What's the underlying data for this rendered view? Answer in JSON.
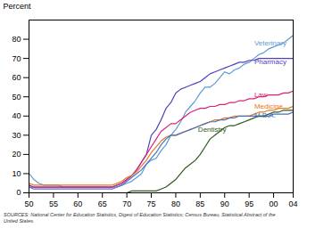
{
  "chart_data": {
    "type": "line",
    "y_label": "Percent",
    "source": "SOURCES: National Center for Education Statistics, Digest of Education Statistics; Census Bureau, Statistical Abstract of the\nUnited States.",
    "xlim": [
      50,
      104
    ],
    "ylim": [
      0,
      90
    ],
    "xticks": [
      50,
      55,
      60,
      65,
      70,
      75,
      80,
      85,
      90,
      95,
      {
        "value": 100,
        "label": "00"
      },
      {
        "value": 104,
        "label": "04"
      }
    ],
    "yticks": [
      0,
      10,
      20,
      30,
      40,
      50,
      60,
      70,
      80
    ],
    "grid": false,
    "x": [
      50,
      51,
      52,
      53,
      54,
      55,
      56,
      57,
      58,
      59,
      60,
      61,
      62,
      63,
      64,
      65,
      66,
      67,
      68,
      69,
      70,
      71,
      72,
      73,
      74,
      75,
      76,
      77,
      78,
      79,
      80,
      81,
      82,
      83,
      84,
      85,
      86,
      87,
      88,
      89,
      90,
      91,
      92,
      93,
      94,
      95,
      96,
      97,
      98,
      99,
      100,
      101,
      102,
      103,
      104
    ],
    "series": [
      {
        "name": "Veterinary",
        "color": "#5b9bd5",
        "values": [
          10,
          7,
          5,
          4,
          4,
          4,
          4,
          3,
          3,
          3,
          3,
          3,
          3,
          3,
          3,
          3,
          3,
          3,
          3,
          4,
          5,
          6,
          8,
          10,
          15,
          17,
          18,
          22,
          25,
          30,
          33,
          37,
          42,
          45,
          48,
          52,
          55,
          55,
          57,
          60,
          63,
          62,
          64,
          65,
          67,
          68,
          70,
          72,
          73,
          75,
          76,
          77,
          78,
          80,
          82
        ]
      },
      {
        "name": "Pharmacy",
        "color": "#5040c0",
        "values": [
          4,
          3,
          3,
          3,
          3,
          3,
          3,
          3,
          3,
          3,
          3,
          3,
          3,
          3,
          3,
          3,
          3,
          3,
          4,
          5,
          7,
          9,
          12,
          16,
          20,
          30,
          33,
          38,
          44,
          47,
          52,
          54,
          55,
          56,
          57,
          58,
          60,
          62,
          63,
          64,
          65,
          66,
          67,
          68,
          68,
          69,
          69,
          70,
          70,
          70,
          70,
          70,
          70,
          70,
          70
        ]
      },
      {
        "name": "Law",
        "color": "#e0207a",
        "values": [
          3,
          3,
          3,
          3,
          3,
          3,
          3,
          3,
          3,
          3,
          3,
          3,
          3,
          3,
          3,
          3,
          3,
          3,
          4,
          5,
          7,
          9,
          12,
          16,
          20,
          24,
          28,
          32,
          34,
          36,
          36,
          38,
          40,
          42,
          43,
          44,
          44,
          45,
          45,
          46,
          46,
          47,
          47,
          48,
          48,
          49,
          49,
          50,
          50,
          51,
          51,
          51,
          52,
          52,
          53
        ]
      },
      {
        "name": "Medicine",
        "color": "#e87820",
        "values": [
          5,
          4,
          4,
          4,
          4,
          4,
          4,
          4,
          4,
          4,
          4,
          4,
          4,
          4,
          4,
          4,
          4,
          4,
          5,
          6,
          8,
          9,
          11,
          14,
          17,
          21,
          24,
          27,
          29,
          30,
          30,
          31,
          32,
          33,
          34,
          35,
          36,
          37,
          38,
          38,
          39,
          39,
          40,
          40,
          40,
          40,
          41,
          42,
          42,
          43,
          43,
          44,
          44,
          44,
          45
        ]
      },
      {
        "name": "M.B.A.",
        "color": "#4472c4",
        "values": [
          3,
          2,
          2,
          2,
          2,
          2,
          2,
          2,
          2,
          2,
          2,
          2,
          2,
          2,
          2,
          2,
          2,
          2,
          3,
          4,
          6,
          8,
          10,
          12,
          15,
          18,
          21,
          25,
          28,
          30,
          30,
          31,
          32,
          33,
          34,
          35,
          36,
          37,
          37,
          38,
          38,
          39,
          39,
          40,
          40,
          40,
          40,
          40,
          40,
          40,
          41,
          41,
          41,
          41,
          42
        ]
      },
      {
        "name": "Dentistry",
        "color": "#2e5a1c",
        "values": [
          0,
          0,
          0,
          0,
          0,
          0,
          0,
          0,
          0,
          0,
          0,
          0,
          0,
          0,
          0,
          0,
          0,
          0,
          0,
          0,
          0,
          1,
          1,
          1,
          1,
          1,
          1,
          2,
          3,
          5,
          7,
          10,
          13,
          15,
          17,
          20,
          24,
          28,
          30,
          32,
          34,
          35,
          35,
          36,
          37,
          38,
          39,
          40,
          40,
          41,
          42,
          42,
          43,
          43,
          43
        ]
      }
    ],
    "annotations": [
      {
        "text": "Veterinary",
        "x": 95.5,
        "y": 78,
        "color": "#5b9bd5"
      },
      {
        "text": "Pharmacy",
        "x": 95.5,
        "y": 68,
        "color": "#5040c0"
      },
      {
        "text": "Law",
        "x": 95.5,
        "y": 51,
        "color": "#e0207a"
      },
      {
        "text": "Medicine",
        "x": 95.5,
        "y": 45,
        "color": "#e87820"
      },
      {
        "text": "M.B.A.",
        "x": 95.5,
        "y": 40.5,
        "color": "#4472c4"
      },
      {
        "text": "Dentistry",
        "x": 84,
        "y": 33,
        "color": "#2e5a1c"
      }
    ]
  }
}
